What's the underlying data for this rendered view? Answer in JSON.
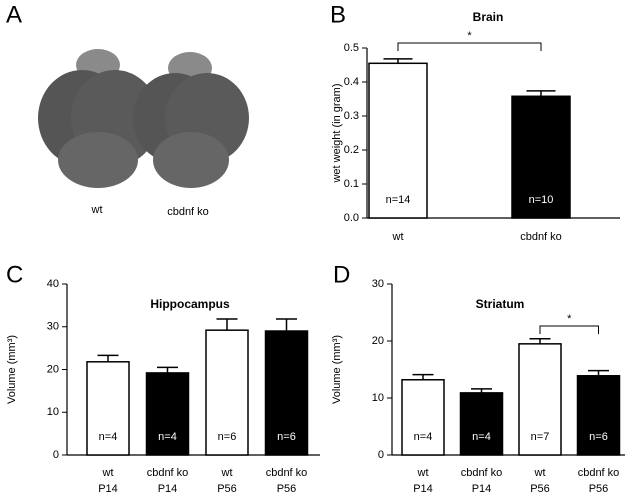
{
  "panel_a": {
    "label": "A",
    "captions": [
      "wt",
      "cbdnf ko"
    ]
  },
  "chart_data": [
    {
      "type": "bar",
      "panel": "B",
      "title": "Brain",
      "y_label": "wet weight (in gram)",
      "categories": [
        "wt",
        "cbdnf ko"
      ],
      "values": [
        0.455,
        0.358
      ],
      "errors": [
        0.013,
        0.016
      ],
      "colors": [
        "#ffffff",
        "#000000"
      ],
      "n_labels": [
        "n=14",
        "n=10"
      ],
      "ylim": [
        0,
        0.5
      ],
      "yticks": [
        {
          "value": 0,
          "label": "0.0"
        },
        0.1,
        0.2,
        0.3,
        0.4,
        0.5
      ],
      "significance": [
        {
          "from": 0,
          "to": 1,
          "label": "*"
        }
      ]
    },
    {
      "type": "bar",
      "panel": "C",
      "title": "Hippocampus",
      "y_label": "Volume (mm³)",
      "categories": [
        [
          "wt",
          "P14"
        ],
        [
          "cbdnf ko",
          "P14"
        ],
        [
          "wt",
          "P56"
        ],
        [
          "cbdnf ko",
          "P56"
        ]
      ],
      "values": [
        21.8,
        19.2,
        29.2,
        29.0
      ],
      "errors": [
        1.5,
        1.3,
        2.6,
        2.8
      ],
      "colors": [
        "#ffffff",
        "#000000",
        "#ffffff",
        "#000000"
      ],
      "n_labels": [
        "n=4",
        "n=4",
        "n=6",
        "n=6"
      ],
      "ylim": [
        0,
        40
      ],
      "yticks": [
        0,
        10,
        20,
        30,
        40
      ],
      "significance": []
    },
    {
      "type": "bar",
      "panel": "D",
      "title": "Striatum",
      "y_label": "Volume (mm³)",
      "categories": [
        [
          "wt",
          "P14"
        ],
        [
          "cbdnf ko",
          "P14"
        ],
        [
          "wt",
          "P56"
        ],
        [
          "cbdnf ko",
          "P56"
        ]
      ],
      "values": [
        13.2,
        10.9,
        19.5,
        13.9
      ],
      "errors": [
        0.9,
        0.7,
        0.9,
        0.9
      ],
      "colors": [
        "#ffffff",
        "#000000",
        "#ffffff",
        "#000000"
      ],
      "n_labels": [
        "n=4",
        "n=4",
        "n=7",
        "n=6"
      ],
      "ylim": [
        0,
        30
      ],
      "yticks": [
        0,
        10,
        20,
        30
      ],
      "significance": [
        {
          "from": 2,
          "to": 3,
          "label": "*"
        }
      ]
    }
  ]
}
